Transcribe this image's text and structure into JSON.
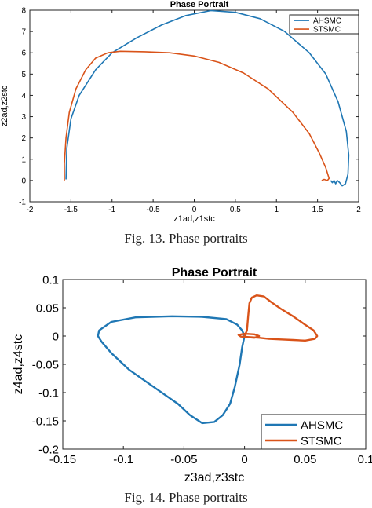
{
  "captions": {
    "fig13": "Fig. 13. Phase portraits",
    "fig14": "Fig. 14. Phase portraits"
  },
  "colors": {
    "ahsmc": "#1f77b4",
    "stsmc": "#d95319"
  },
  "chart_data": [
    {
      "type": "line",
      "title": "Phase Portrait",
      "xlabel": "z1ad,z1stc",
      "ylabel": "z2ad,z2stc",
      "xlim": [
        -2,
        2
      ],
      "ylim": [
        -1,
        8
      ],
      "xticks": [
        "-2",
        "-1.5",
        "-1",
        "-0.5",
        "0",
        "0.5",
        "1",
        "1.5",
        "2"
      ],
      "yticks": [
        "-1",
        "0",
        "1",
        "2",
        "3",
        "4",
        "5",
        "6",
        "7",
        "8"
      ],
      "grid": false,
      "legend": "top-right",
      "series": [
        {
          "name": "AHSMC",
          "color": "#1f77b4",
          "points": [
            [
              -1.56,
              0.05
            ],
            [
              -1.55,
              1.5
            ],
            [
              -1.5,
              2.9
            ],
            [
              -1.4,
              4.0
            ],
            [
              -1.2,
              5.2
            ],
            [
              -1.0,
              6.0
            ],
            [
              -0.7,
              6.7
            ],
            [
              -0.4,
              7.3
            ],
            [
              -0.1,
              7.75
            ],
            [
              0.2,
              7.98
            ],
            [
              0.5,
              7.9
            ],
            [
              0.8,
              7.6
            ],
            [
              1.1,
              7.0
            ],
            [
              1.4,
              6.0
            ],
            [
              1.6,
              5.0
            ],
            [
              1.75,
              3.7
            ],
            [
              1.85,
              2.3
            ],
            [
              1.88,
              1.2
            ],
            [
              1.87,
              0.3
            ],
            [
              1.84,
              -0.15
            ],
            [
              1.8,
              -0.25
            ],
            [
              1.77,
              -0.1
            ],
            [
              1.74,
              0.0
            ],
            [
              1.72,
              -0.15
            ],
            [
              1.7,
              0.0
            ],
            [
              1.68,
              -0.1
            ],
            [
              1.66,
              0.0
            ]
          ]
        },
        {
          "name": "STSMC",
          "color": "#d95319",
          "points": [
            [
              -1.58,
              0.0
            ],
            [
              -1.58,
              0.8
            ],
            [
              -1.56,
              2.0
            ],
            [
              -1.52,
              3.2
            ],
            [
              -1.44,
              4.3
            ],
            [
              -1.32,
              5.2
            ],
            [
              -1.2,
              5.75
            ],
            [
              -1.05,
              6.0
            ],
            [
              -0.9,
              6.07
            ],
            [
              -0.6,
              6.05
            ],
            [
              -0.3,
              6.0
            ],
            [
              0.0,
              5.85
            ],
            [
              0.3,
              5.55
            ],
            [
              0.6,
              5.05
            ],
            [
              0.9,
              4.3
            ],
            [
              1.2,
              3.2
            ],
            [
              1.4,
              2.2
            ],
            [
              1.52,
              1.3
            ],
            [
              1.6,
              0.6
            ],
            [
              1.64,
              0.1
            ],
            [
              1.62,
              0.0
            ],
            [
              1.58,
              0.05
            ],
            [
              1.55,
              0.0
            ]
          ]
        }
      ]
    },
    {
      "type": "line",
      "title": "Phase Portrait",
      "xlabel": "z3ad,z3stc",
      "ylabel": "z4ad,z4stc",
      "xlim": [
        -0.15,
        0.1
      ],
      "ylim": [
        -0.2,
        0.1
      ],
      "xticks": [
        "-0.15",
        "-0.1",
        "-0.05",
        "0",
        "0.05",
        "0.1"
      ],
      "yticks": [
        "-0.2",
        "-0.15",
        "-0.1",
        "-0.05",
        "0",
        "0.05",
        "0.1"
      ],
      "grid": false,
      "legend": "bottom-right",
      "series": [
        {
          "name": "AHSMC",
          "color": "#1f77b4",
          "points": [
            [
              0.0,
              0.0
            ],
            [
              -0.002,
              0.01
            ],
            [
              -0.006,
              0.02
            ],
            [
              -0.015,
              0.03
            ],
            [
              -0.035,
              0.034
            ],
            [
              -0.06,
              0.035
            ],
            [
              -0.09,
              0.033
            ],
            [
              -0.11,
              0.025
            ],
            [
              -0.12,
              0.01
            ],
            [
              -0.121,
              0.0
            ],
            [
              -0.118,
              -0.01
            ],
            [
              -0.11,
              -0.03
            ],
            [
              -0.095,
              -0.06
            ],
            [
              -0.075,
              -0.09
            ],
            [
              -0.055,
              -0.12
            ],
            [
              -0.045,
              -0.14
            ],
            [
              -0.035,
              -0.154
            ],
            [
              -0.025,
              -0.152
            ],
            [
              -0.018,
              -0.14
            ],
            [
              -0.012,
              -0.12
            ],
            [
              -0.008,
              -0.09
            ],
            [
              -0.004,
              -0.05
            ],
            [
              -0.002,
              -0.02
            ],
            [
              0.0,
              0.0
            ]
          ]
        },
        {
          "name": "STSMC",
          "color": "#d95319",
          "points": [
            [
              0.0,
              0.0
            ],
            [
              0.002,
              0.01
            ],
            [
              0.003,
              0.035
            ],
            [
              0.004,
              0.058
            ],
            [
              0.006,
              0.068
            ],
            [
              0.01,
              0.072
            ],
            [
              0.016,
              0.07
            ],
            [
              0.022,
              0.06
            ],
            [
              0.03,
              0.048
            ],
            [
              0.04,
              0.035
            ],
            [
              0.05,
              0.02
            ],
            [
              0.057,
              0.01
            ],
            [
              0.06,
              0.0
            ],
            [
              0.058,
              -0.005
            ],
            [
              0.05,
              -0.008
            ],
            [
              0.04,
              -0.007
            ],
            [
              0.03,
              -0.006
            ],
            [
              0.02,
              -0.005
            ],
            [
              0.012,
              -0.003
            ],
            [
              0.005,
              -0.002
            ],
            [
              -0.003,
              -0.001
            ],
            [
              -0.005,
              0.002
            ],
            [
              0.0,
              0.004
            ],
            [
              0.008,
              0.003
            ],
            [
              0.012,
              0.0
            ],
            [
              0.008,
              -0.003
            ],
            [
              0.002,
              -0.002
            ],
            [
              0.0,
              0.0
            ]
          ]
        }
      ]
    }
  ]
}
